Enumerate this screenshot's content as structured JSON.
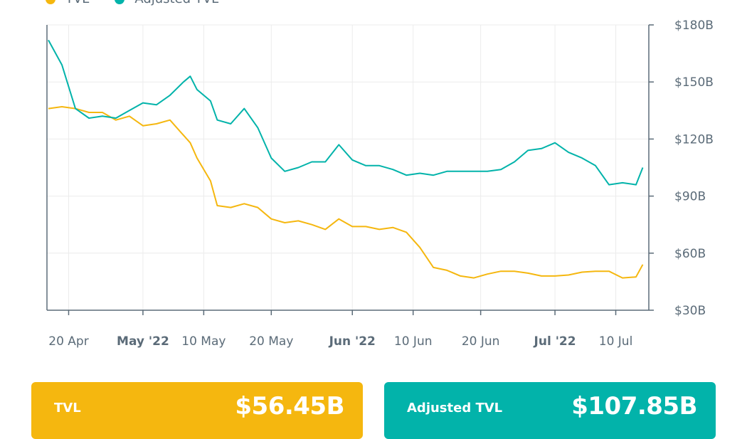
{
  "colors": {
    "tvl": "#F5B70F",
    "adjusted_tvl": "#02B3AA",
    "axis": "#5b6b78",
    "grid": "#ececec"
  },
  "legend": [
    {
      "label": "TVL",
      "color": "#F5B70F"
    },
    {
      "label": "Adjusted TVL",
      "color": "#02B3AA"
    }
  ],
  "cards": {
    "tvl": {
      "label": "TVL",
      "value": "$56.45B"
    },
    "adjusted": {
      "label": "Adjusted TVL",
      "value": "$107.85B"
    }
  },
  "chart_data": {
    "type": "line",
    "title": "",
    "xlabel": "",
    "ylabel": "",
    "xlim": [
      "2022-04-17",
      "2022-07-15"
    ],
    "ylim": [
      30,
      180
    ],
    "y_axis_side": "right",
    "grid": true,
    "legend_placement": "top-left",
    "y_ticks": [
      {
        "value": 30,
        "label": "$30B"
      },
      {
        "value": 60,
        "label": "$60B"
      },
      {
        "value": 90,
        "label": "$90B"
      },
      {
        "value": 120,
        "label": "$120B"
      },
      {
        "value": 150,
        "label": "$150B"
      },
      {
        "value": 180,
        "label": "$180B"
      }
    ],
    "x_ticks": [
      {
        "date": "2022-04-20",
        "label": "20 Apr",
        "bold": false
      },
      {
        "date": "2022-05-01",
        "label": "May '22",
        "bold": true
      },
      {
        "date": "2022-05-10",
        "label": "10 May",
        "bold": false
      },
      {
        "date": "2022-05-20",
        "label": "20 May",
        "bold": false
      },
      {
        "date": "2022-06-01",
        "label": "Jun '22",
        "bold": true
      },
      {
        "date": "2022-06-10",
        "label": "10 Jun",
        "bold": false
      },
      {
        "date": "2022-06-20",
        "label": "20 Jun",
        "bold": false
      },
      {
        "date": "2022-07-01",
        "label": "Jul '22",
        "bold": true
      },
      {
        "date": "2022-07-10",
        "label": "10 Jul",
        "bold": false
      }
    ],
    "x": [
      "2022-04-17",
      "2022-04-19",
      "2022-04-21",
      "2022-04-23",
      "2022-04-25",
      "2022-04-27",
      "2022-04-29",
      "2022-05-01",
      "2022-05-03",
      "2022-05-05",
      "2022-05-07",
      "2022-05-08",
      "2022-05-09",
      "2022-05-11",
      "2022-05-12",
      "2022-05-14",
      "2022-05-16",
      "2022-05-18",
      "2022-05-20",
      "2022-05-22",
      "2022-05-24",
      "2022-05-26",
      "2022-05-28",
      "2022-05-30",
      "2022-06-01",
      "2022-06-03",
      "2022-06-05",
      "2022-06-07",
      "2022-06-09",
      "2022-06-11",
      "2022-06-13",
      "2022-06-15",
      "2022-06-17",
      "2022-06-19",
      "2022-06-21",
      "2022-06-23",
      "2022-06-25",
      "2022-06-27",
      "2022-06-29",
      "2022-07-01",
      "2022-07-03",
      "2022-07-05",
      "2022-07-07",
      "2022-07-09",
      "2022-07-11",
      "2022-07-13",
      "2022-07-14"
    ],
    "series": [
      {
        "name": "TVL",
        "color": "#F5B70F",
        "values": [
          136,
          137,
          136,
          134,
          134,
          130,
          132,
          127,
          128,
          130,
          122,
          118,
          110,
          98,
          85,
          84,
          86,
          84,
          78,
          76,
          77,
          75,
          72.5,
          78,
          74,
          74,
          72.5,
          73.5,
          71,
          63,
          52.5,
          51,
          48,
          47,
          49,
          50.5,
          50.5,
          49.5,
          48,
          48,
          48.5,
          50,
          50.5,
          50.5,
          47,
          47.5,
          54
        ]
      },
      {
        "name": "Adjusted TVL",
        "color": "#02B3AA",
        "values": [
          172,
          159,
          136,
          131,
          132,
          131,
          135,
          139,
          138,
          143,
          150,
          153,
          146,
          140,
          130,
          128,
          136,
          126,
          110,
          103,
          105,
          108,
          108,
          117,
          109,
          106,
          106,
          104,
          101,
          102,
          101,
          103,
          103,
          103,
          103,
          104,
          108,
          114,
          115,
          118,
          113,
          110,
          106,
          96,
          97,
          96,
          105
        ]
      }
    ]
  }
}
